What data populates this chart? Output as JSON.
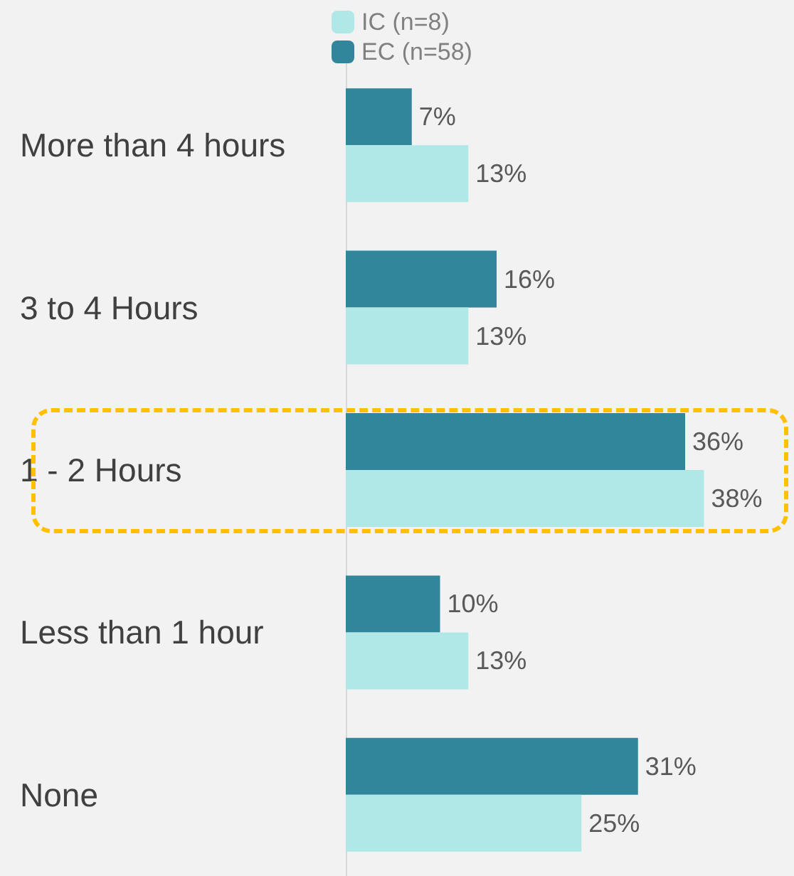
{
  "chart_data": {
    "type": "bar",
    "orientation": "horizontal",
    "legend": "top",
    "categories": [
      "More than 4 hours",
      "3 to 4 Hours",
      "1 - 2 Hours",
      "Less than 1 hour",
      "None"
    ],
    "series": [
      {
        "name": "EC (n=58)",
        "color": "#31869b",
        "values": [
          7,
          16,
          36,
          10,
          31
        ],
        "value_labels": [
          "7%",
          "16%",
          "36%",
          "10%",
          "31%"
        ]
      },
      {
        "name": "IC (n=8)",
        "color": "#b0e8e8",
        "values": [
          13,
          13,
          38,
          13,
          25
        ],
        "value_labels": [
          "13%",
          "13%",
          "38%",
          "13%",
          "25%"
        ]
      }
    ]
  }
}
